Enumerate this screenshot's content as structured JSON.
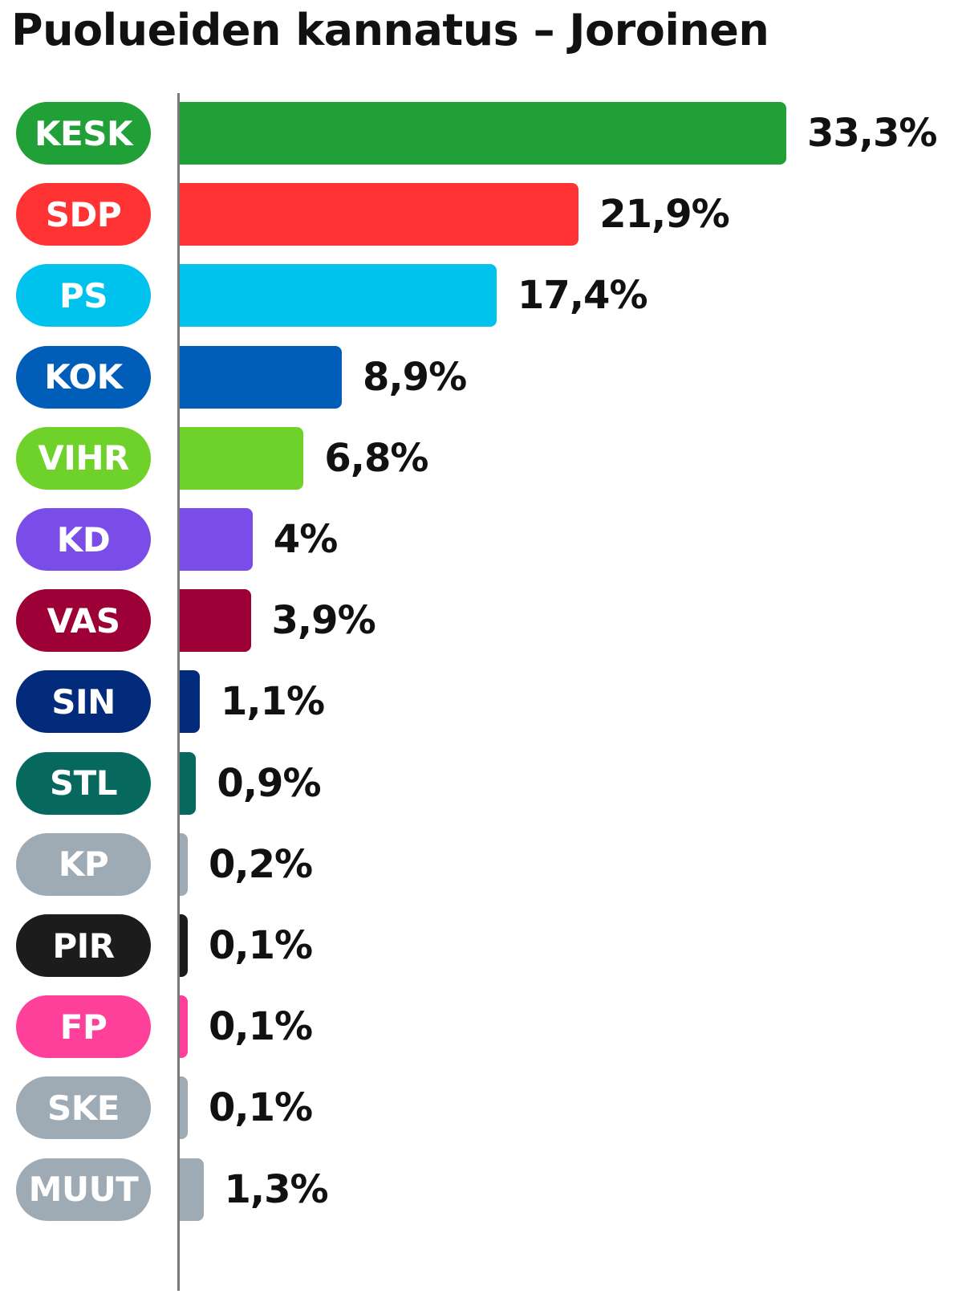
{
  "chart_data": {
    "type": "bar",
    "orientation": "horizontal",
    "title": "Puolueiden kannatus – Joroinen",
    "xlim": [
      0,
      33.3
    ],
    "grid": false,
    "bars": [
      {
        "party": "KESK",
        "value": 33.3,
        "label": "33,3%",
        "color": "#21a038"
      },
      {
        "party": "SDP",
        "value": 21.9,
        "label": "21,9%",
        "color": "#ff3333"
      },
      {
        "party": "PS",
        "value": 17.4,
        "label": "17,4%",
        "color": "#00c3ed"
      },
      {
        "party": "KOK",
        "value": 8.9,
        "label": "8,9%",
        "color": "#005db8"
      },
      {
        "party": "VIHR",
        "value": 6.8,
        "label": "6,8%",
        "color": "#6fd22b"
      },
      {
        "party": "KD",
        "value": 4,
        "label": "4%",
        "color": "#7a4de8"
      },
      {
        "party": "VAS",
        "value": 3.9,
        "label": "3,9%",
        "color": "#9c0037"
      },
      {
        "party": "SIN",
        "value": 1.1,
        "label": "1,1%",
        "color": "#022b7c"
      },
      {
        "party": "STL",
        "value": 0.9,
        "label": "0,9%",
        "color": "#07685e"
      },
      {
        "party": "KP",
        "value": 0.2,
        "label": "0,2%",
        "color": "#9eabb5"
      },
      {
        "party": "PIR",
        "value": 0.1,
        "label": "0,1%",
        "color": "#1c1c1c"
      },
      {
        "party": "FP",
        "value": 0.1,
        "label": "0,1%",
        "color": "#ff409a"
      },
      {
        "party": "SKE",
        "value": 0.1,
        "label": "0,1%",
        "color": "#9eabb5"
      },
      {
        "party": "MUUT",
        "value": 1.3,
        "label": "1,3%",
        "color": "#9eabb5"
      }
    ]
  }
}
